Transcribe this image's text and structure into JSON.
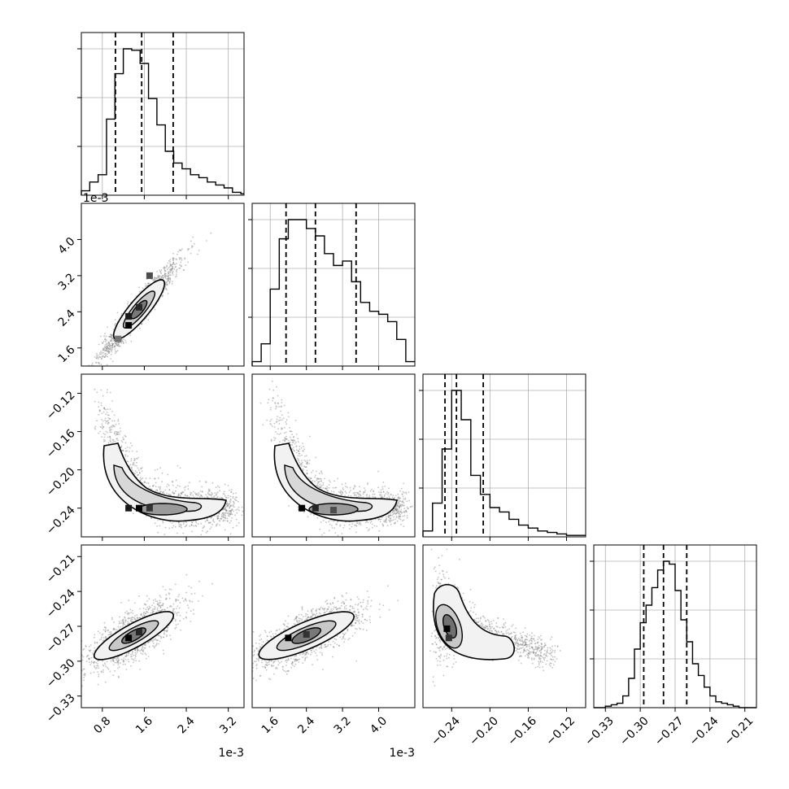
{
  "chart_data": {
    "type": "corner",
    "title": "",
    "n_params": 4,
    "axis_labels": [
      "",
      "",
      "",
      ""
    ],
    "grid": true,
    "colors": {
      "line": "#000000",
      "grid": "#b0b0b0",
      "points": "#7a7a7a"
    },
    "params": [
      {
        "index": 0,
        "range": [
          0.4,
          3.5
        ],
        "offset_text": "1e-3",
        "ticks": [
          0.8,
          1.6,
          2.4,
          3.2
        ],
        "tick_labels": [
          "0.8",
          "1.6",
          "2.4",
          "3.2"
        ],
        "quantiles": [
          1.05,
          1.55,
          2.15
        ],
        "hist": {
          "edges": [
            0.4,
            0.56,
            0.72,
            0.88,
            1.04,
            1.2,
            1.36,
            1.52,
            1.68,
            1.84,
            2,
            2.16,
            2.32,
            2.48,
            2.64,
            2.8,
            2.96,
            3.12,
            3.28,
            3.44,
            3.5
          ],
          "counts": [
            3,
            9,
            14,
            52,
            83,
            100,
            99,
            90,
            66,
            48,
            30,
            22,
            18,
            14,
            12,
            9,
            7,
            5,
            2,
            1
          ]
        }
      },
      {
        "index": 1,
        "range": [
          1.2,
          4.8
        ],
        "offset_text": "1e-3",
        "ticks": [
          1.6,
          2.4,
          3.2,
          4.0
        ],
        "tick_labels": [
          "1.6",
          "2.4",
          "3.2",
          "4.0"
        ],
        "quantiles": [
          1.95,
          2.6,
          3.5
        ],
        "hist": {
          "edges": [
            1.2,
            1.4,
            1.6,
            1.8,
            2,
            2.2,
            2.4,
            2.6,
            2.8,
            3,
            3.2,
            3.4,
            3.6,
            3.8,
            4,
            4.2,
            4.4,
            4.6,
            4.8
          ],
          "counts": [
            3,
            15,
            52,
            86,
            99,
            99,
            93,
            88,
            76,
            68,
            71,
            57,
            43,
            37,
            35,
            30,
            18,
            3
          ]
        }
      },
      {
        "index": 2,
        "range": [
          -0.27,
          -0.1
        ],
        "offset_text": "",
        "ticks": [
          -0.24,
          -0.2,
          -0.16,
          -0.12
        ],
        "tick_labels": [
          "−0.24",
          "−0.20",
          "−0.16",
          "−0.12"
        ],
        "quantiles": [
          -0.247,
          -0.235,
          -0.207
        ],
        "hist": {
          "edges": [
            -0.27,
            -0.26,
            -0.25,
            -0.24,
            -0.23,
            -0.22,
            -0.21,
            -0.2,
            -0.19,
            -0.18,
            -0.17,
            -0.16,
            -0.15,
            -0.14,
            -0.13,
            -0.12,
            -0.11,
            -0.1
          ],
          "counts": [
            4,
            23,
            60,
            100,
            80,
            42,
            29,
            20,
            17,
            12,
            8,
            6,
            4,
            3,
            2,
            1,
            1
          ]
        }
      },
      {
        "index": 3,
        "range": [
          -0.34,
          -0.2
        ],
        "offset_text": "",
        "ticks": [
          -0.33,
          -0.3,
          -0.27,
          -0.24,
          -0.21
        ],
        "tick_labels": [
          "−0.33",
          "−0.30",
          "−0.27",
          "−0.24",
          "−0.21"
        ],
        "quantiles": [
          -0.297,
          -0.28,
          -0.26
        ],
        "hist": {
          "edges": [
            -0.34,
            -0.335,
            -0.33,
            -0.325,
            -0.32,
            -0.315,
            -0.31,
            -0.305,
            -0.3,
            -0.295,
            -0.29,
            -0.285,
            -0.28,
            -0.275,
            -0.27,
            -0.265,
            -0.26,
            -0.255,
            -0.25,
            -0.245,
            -0.24,
            -0.235,
            -0.23,
            -0.225,
            -0.22,
            -0.215,
            -0.21,
            -0.205,
            -0.2
          ],
          "counts": [
            0,
            0,
            1,
            2,
            3,
            8,
            20,
            40,
            58,
            70,
            82,
            94,
            100,
            98,
            80,
            60,
            45,
            30,
            22,
            14,
            8,
            4,
            3,
            2,
            1,
            0,
            0,
            0
          ]
        }
      }
    ],
    "pairs": [
      {
        "x": 0,
        "y": 1,
        "mean": [
          1.5,
          2.45
        ],
        "sd": [
          0.38,
          0.55
        ],
        "rho": 0.96,
        "n": 1600,
        "density_cells": [
          {
            "x": 1.3,
            "y": 2.1,
            "v": 1.0
          },
          {
            "x": 1.3,
            "y": 2.3,
            "v": 0.9
          },
          {
            "x": 1.5,
            "y": 2.5,
            "v": 0.85
          },
          {
            "x": 1.7,
            "y": 3.2,
            "v": 0.7
          },
          {
            "x": 1.1,
            "y": 1.8,
            "v": 0.55
          }
        ]
      },
      {
        "x": 0,
        "y": 2,
        "curve": "banana",
        "n": 1400,
        "density_cells": [
          {
            "x": 1.5,
            "y": -0.24,
            "v": 1.0
          },
          {
            "x": 1.3,
            "y": -0.24,
            "v": 0.9
          },
          {
            "x": 1.7,
            "y": -0.24,
            "v": 0.8
          }
        ]
      },
      {
        "x": 0,
        "y": 3,
        "mean": [
          1.4,
          -0.278
        ],
        "sd": [
          0.45,
          0.015
        ],
        "rho": 0.75,
        "n": 1500,
        "density_cells": [
          {
            "x": 1.3,
            "y": -0.28,
            "v": 1.0
          },
          {
            "x": 1.5,
            "y": -0.275,
            "v": 0.85
          }
        ]
      },
      {
        "x": 1,
        "y": 2,
        "curve": "banana",
        "n": 1400,
        "density_cells": [
          {
            "x": 2.3,
            "y": -0.24,
            "v": 1.0
          },
          {
            "x": 2.6,
            "y": -0.24,
            "v": 0.85
          },
          {
            "x": 3.0,
            "y": -0.242,
            "v": 0.7
          }
        ]
      },
      {
        "x": 1,
        "y": 3,
        "mean": [
          2.4,
          -0.278
        ],
        "sd": [
          0.6,
          0.014
        ],
        "rho": 0.72,
        "n": 1500,
        "density_cells": [
          {
            "x": 2.0,
            "y": -0.28,
            "v": 1.0
          },
          {
            "x": 2.4,
            "y": -0.277,
            "v": 0.8
          }
        ]
      },
      {
        "x": 2,
        "y": 3,
        "curve": "corner",
        "n": 1300,
        "density_cells": [
          {
            "x": -0.245,
            "y": -0.272,
            "v": 1.0
          },
          {
            "x": -0.243,
            "y": -0.28,
            "v": 0.8
          }
        ]
      }
    ]
  }
}
